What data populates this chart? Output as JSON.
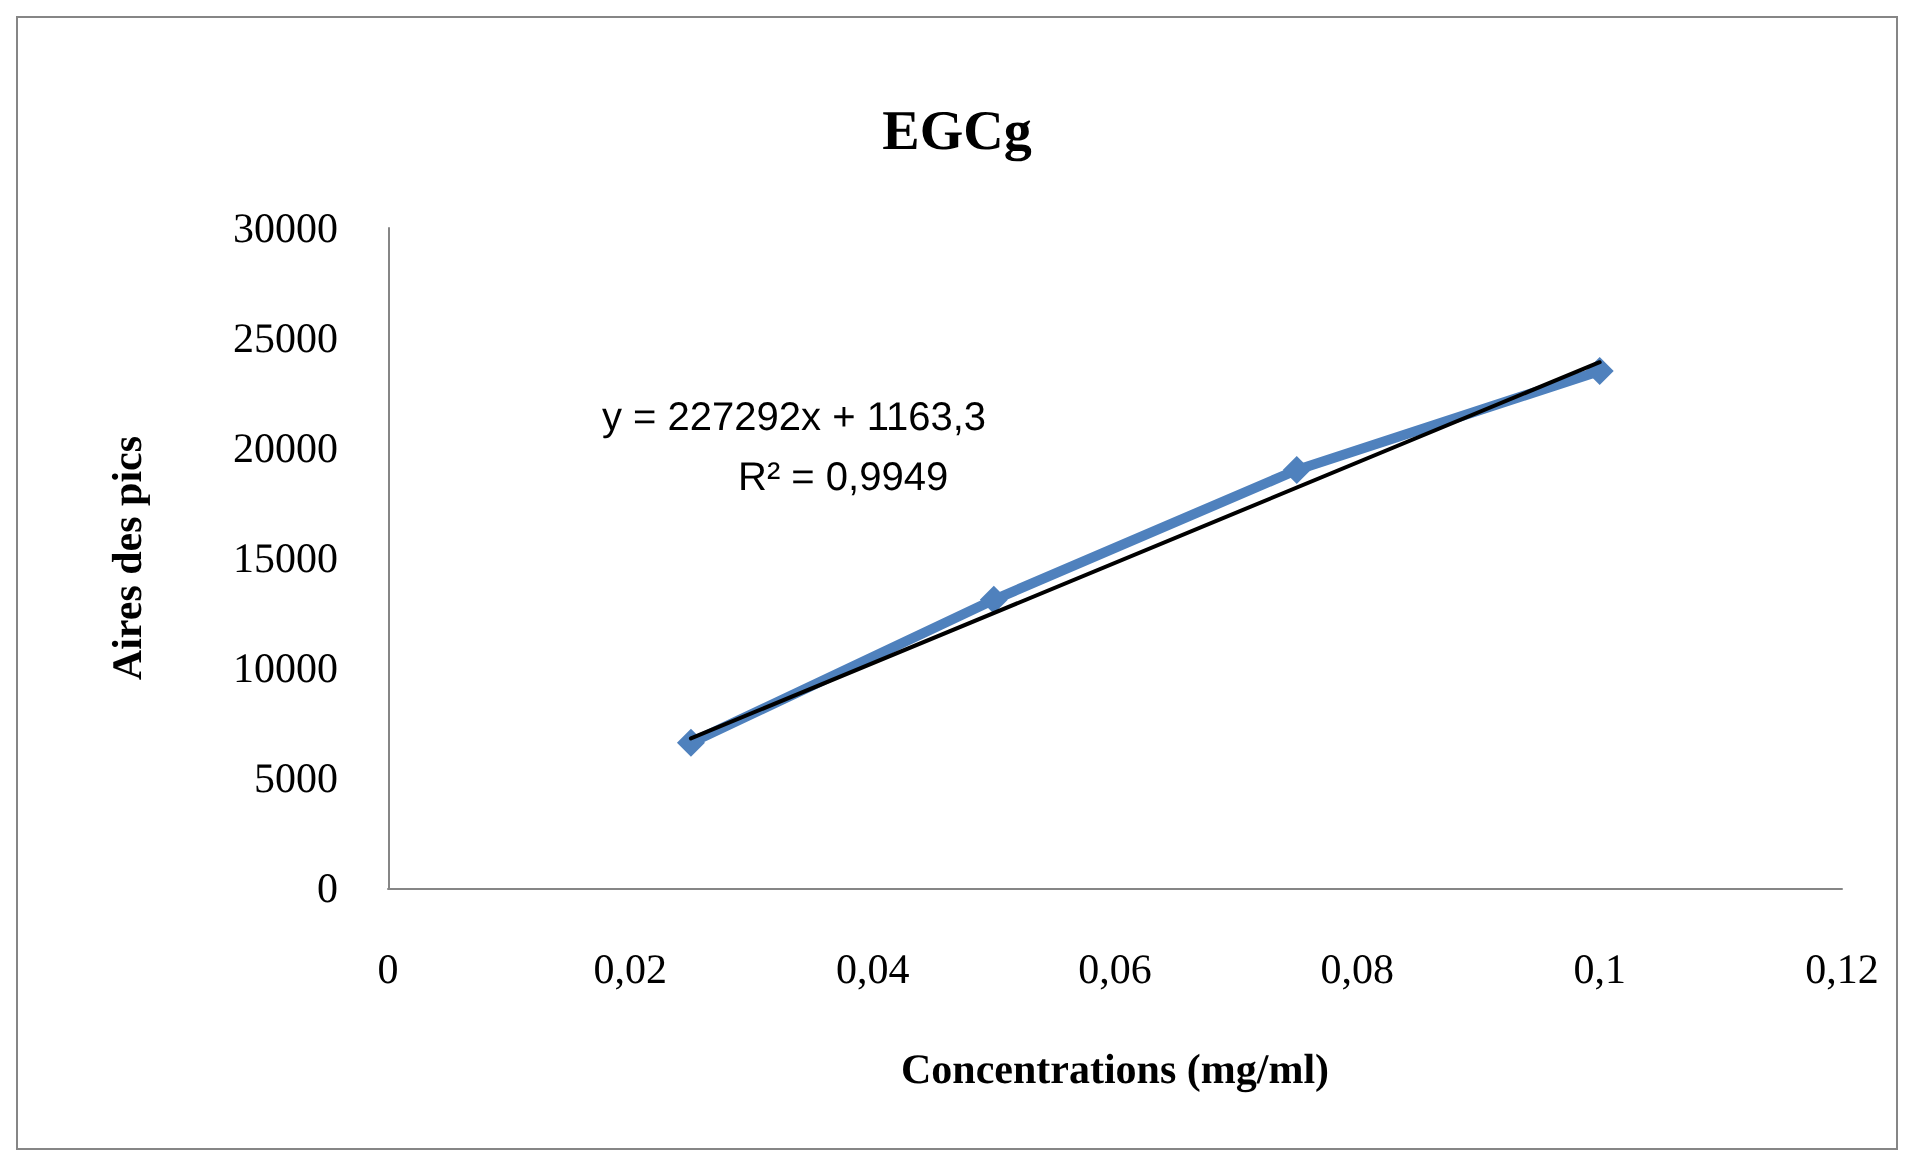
{
  "chart_data": {
    "type": "line",
    "title": "EGCg",
    "xlabel": "Concentrations (mg/ml)",
    "ylabel": "Aires des pics",
    "annotations": [
      "y = 227292x + 1163,3",
      "R² = 0,9949"
    ],
    "series": [
      {
        "color": "#4f81bd",
        "marker": "diamond",
        "x": [
          0.025,
          0.05,
          0.075,
          0.1
        ],
        "values": [
          6600,
          13100,
          19000,
          23500
        ]
      },
      {
        "color": "#000000",
        "marker": "none",
        "x": [
          0.025,
          0.1
        ],
        "values": [
          6800,
          23900
        ]
      }
    ],
    "xlim": [
      0,
      0.12
    ],
    "xticks": [
      0,
      {
        "value": 0.02,
        "label": "0,02"
      },
      {
        "value": 0.04,
        "label": "0,04"
      },
      {
        "value": 0.06,
        "label": "0,06"
      },
      {
        "value": 0.08,
        "label": "0,08"
      },
      {
        "value": 0.1,
        "label": "0,1"
      },
      {
        "value": 0.12,
        "label": "0,12"
      }
    ],
    "ylim": [
      0,
      30000
    ],
    "yticks": [
      0,
      5000,
      10000,
      15000,
      20000,
      25000,
      30000
    ],
    "grid": false
  }
}
